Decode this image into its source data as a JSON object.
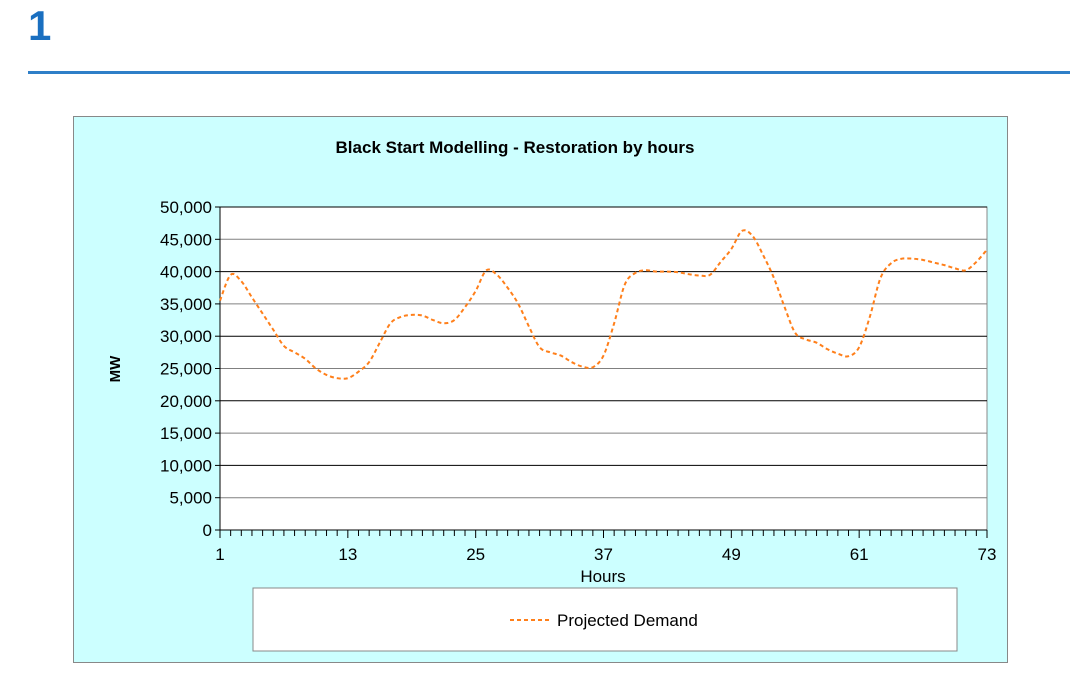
{
  "slide_number": "1",
  "chart_data": {
    "type": "line",
    "title": "Black Start Modelling - Restoration by hours",
    "xlabel": "Hours",
    "ylabel": "MW",
    "ylim": [
      0,
      50000
    ],
    "xlim": [
      1,
      73
    ],
    "yticks": [
      0,
      5000,
      10000,
      15000,
      20000,
      25000,
      30000,
      35000,
      40000,
      45000,
      50000
    ],
    "ytick_labels": [
      "0",
      "5,000",
      "10,000",
      "15,000",
      "20,000",
      "25,000",
      "30,000",
      "35,000",
      "40,000",
      "45,000",
      "50,000"
    ],
    "xtick_labels": [
      "1",
      "13",
      "25",
      "37",
      "49",
      "61",
      "73"
    ],
    "grid": true,
    "legend_placement": "bottom",
    "background_color": "#ccffff",
    "plot_background": "#ffffff",
    "series": [
      {
        "name": "Projected Demand",
        "color": "#ff7f1a",
        "style": "dashed",
        "x": [
          1,
          2,
          3,
          4,
          5,
          6,
          7,
          8,
          9,
          10,
          11,
          12,
          13,
          14,
          15,
          16,
          17,
          18,
          19,
          20,
          21,
          22,
          23,
          24,
          25,
          26,
          27,
          28,
          29,
          30,
          31,
          32,
          33,
          34,
          35,
          36,
          37,
          38,
          39,
          40,
          41,
          42,
          43,
          44,
          45,
          46,
          47,
          48,
          49,
          50,
          51,
          52,
          53,
          54,
          55,
          56,
          57,
          58,
          59,
          60,
          61,
          62,
          63,
          64,
          65,
          66,
          67,
          68,
          69,
          70,
          71,
          72,
          73
        ],
        "values": [
          35500,
          39500,
          38500,
          36000,
          33500,
          31000,
          28500,
          27500,
          26500,
          25000,
          24000,
          23500,
          23500,
          24500,
          26000,
          29000,
          32000,
          33000,
          33300,
          33200,
          32500,
          32000,
          32500,
          34500,
          37000,
          40200,
          39500,
          37500,
          35000,
          31500,
          28300,
          27500,
          27000,
          26000,
          25300,
          25200,
          27000,
          32000,
          38000,
          39800,
          40200,
          40000,
          40000,
          39900,
          39600,
          39400,
          39500,
          41500,
          43500,
          46300,
          45500,
          42500,
          39000,
          34500,
          30500,
          29500,
          29000,
          28000,
          27300,
          26900,
          28300,
          33000,
          39000,
          41300,
          42000,
          42000,
          41800,
          41400,
          41000,
          40500,
          40200,
          41500,
          43400
        ]
      }
    ]
  }
}
